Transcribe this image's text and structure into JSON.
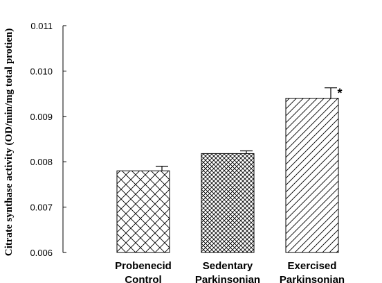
{
  "chart_data": {
    "type": "bar",
    "title": "",
    "xlabel": "",
    "ylabel": "Citrate synthase activity (OD/min/mg total protien)",
    "ylim": [
      0.006,
      0.011
    ],
    "yticks": [
      "0.006",
      "0.007",
      "0.008",
      "0.009",
      "0.010",
      "0.011"
    ],
    "categories": [
      [
        "Probenecid",
        "Control"
      ],
      [
        "Sedentary",
        "Parkinsonian"
      ],
      [
        "Exercised",
        "Parkinsonian"
      ]
    ],
    "values": [
      0.0078,
      0.00818,
      0.0094
    ],
    "errors": [
      0.0001,
      6e-05,
      0.00023
    ],
    "patterns": [
      "crosshatch-wide",
      "crosshatch-dense",
      "diagonal"
    ],
    "annotations": [
      {
        "category_index": 2,
        "text": "*"
      }
    ],
    "grid": false,
    "legend": "none"
  }
}
